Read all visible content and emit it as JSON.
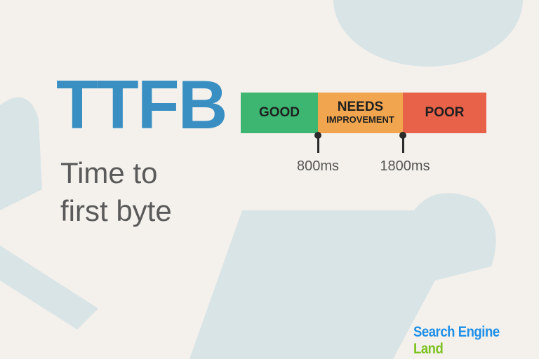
{
  "title": "TTFB",
  "subtitle": [
    "Time to",
    "first byte"
  ],
  "scale": {
    "segments": [
      {
        "label": "GOOD",
        "color": "#3cb671"
      },
      {
        "label": "NEEDS",
        "sublabel": "IMPROVEMENT",
        "color": "#f0a54e"
      },
      {
        "label": "POOR",
        "color": "#e8624a"
      }
    ],
    "thresholds": [
      "800ms",
      "1800ms"
    ]
  },
  "logo": {
    "part1": "Search Engine",
    "part2": "Land"
  },
  "colors": {
    "background": "#f4f1ec",
    "shapes": "#d9e4e7",
    "title": "#3a8fc2"
  }
}
